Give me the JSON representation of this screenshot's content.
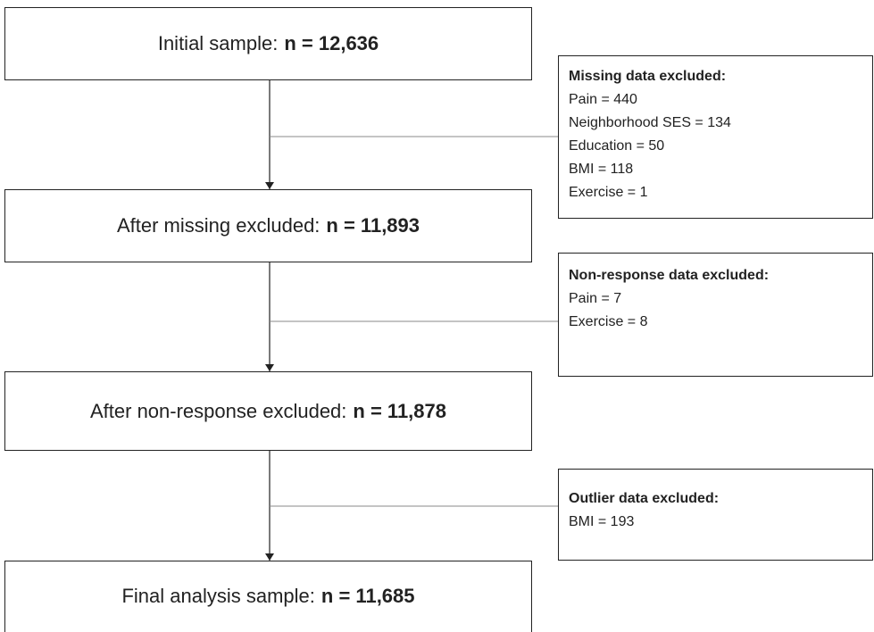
{
  "steps": [
    {
      "label": "Initial sample:",
      "count": "n = 12,636"
    },
    {
      "label": "After missing excluded:",
      "count": "n = 11,893"
    },
    {
      "label": "After non-response excluded:",
      "count": "n = 11,878"
    },
    {
      "label": "Final analysis sample:",
      "count": "n = 11,685"
    }
  ],
  "exclusions": [
    {
      "title": "Missing data excluded:",
      "items": [
        "Pain = 440",
        "Neighborhood SES = 134",
        "Education = 50",
        "BMI = 118",
        "Exercise = 1"
      ]
    },
    {
      "title": "Non-response data excluded:",
      "items": [
        "Pain = 7",
        "Exercise = 8"
      ]
    },
    {
      "title": "Outlier data excluded:",
      "items": [
        "BMI = 193"
      ]
    }
  ]
}
